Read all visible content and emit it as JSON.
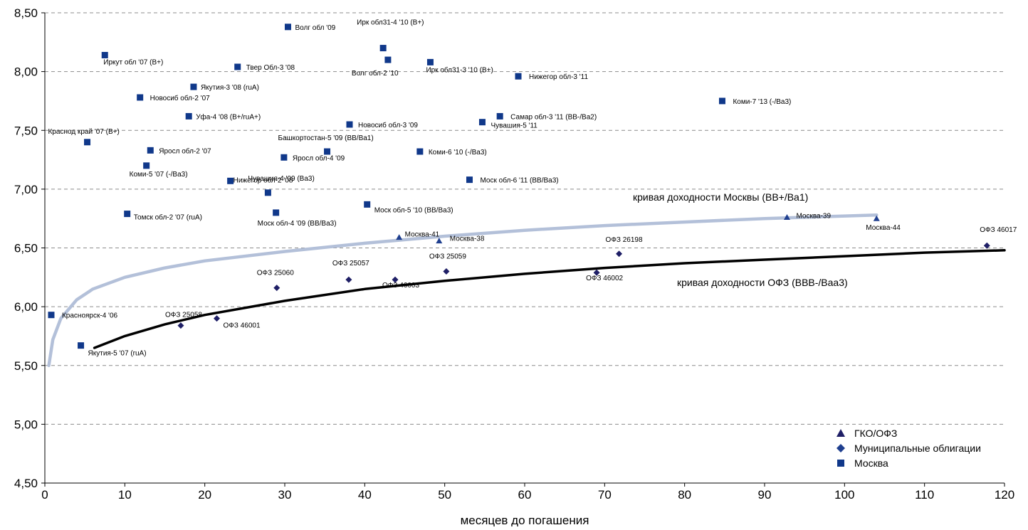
{
  "chart_data": {
    "type": "scatter",
    "xlabel": "месяцев до погашения",
    "ylabel": "",
    "xlim": [
      0,
      120
    ],
    "ylim": [
      4.5,
      8.5
    ],
    "x_ticks": [
      "0",
      "10",
      "20",
      "30",
      "40",
      "50",
      "60",
      "70",
      "80",
      "90",
      "100",
      "110",
      "120"
    ],
    "y_ticks": [
      "4,50",
      "5,00",
      "5,50",
      "6,00",
      "6,50",
      "7,00",
      "7,50",
      "8,00",
      "8,50"
    ],
    "grid": "horizontal dashed",
    "legend_position": "bottom-right",
    "colors": {
      "ofz": "#1f1f66",
      "municipal": "#1f3f8f",
      "moscow": "#10388a",
      "moscow_curve": "#b3c0d9",
      "ofz_curve": "#000000"
    },
    "series": [
      {
        "name": "ГКО/ОФЗ",
        "marker": "triangle",
        "points": [
          {
            "x": 17.0,
            "y": 5.84,
            "label": "ОФЗ 25058"
          },
          {
            "x": 21.5,
            "y": 5.9,
            "label": "ОФЗ 46001"
          },
          {
            "x": 29.0,
            "y": 6.16,
            "label": "ОФЗ 25060"
          },
          {
            "x": 38.0,
            "y": 6.23,
            "label": "ОФЗ 25057"
          },
          {
            "x": 43.8,
            "y": 6.23,
            "label": "ОФЗ 46003"
          },
          {
            "x": 50.2,
            "y": 6.3,
            "label": "ОФЗ 25059"
          },
          {
            "x": 69.0,
            "y": 6.29,
            "label": "ОФЗ 46002"
          },
          {
            "x": 71.8,
            "y": 6.45,
            "label": "ОФЗ 26198"
          },
          {
            "x": 117.8,
            "y": 6.52,
            "label": "ОФЗ 46017"
          }
        ]
      },
      {
        "name": "Муниципальные облигации",
        "marker": "diamond",
        "points": [
          {
            "x": 44.3,
            "y": 6.59,
            "label": "Москва-41"
          },
          {
            "x": 49.3,
            "y": 6.56,
            "label": "Москва-38"
          },
          {
            "x": 92.8,
            "y": 6.76,
            "label": "Москва-39"
          },
          {
            "x": 104.0,
            "y": 6.75,
            "label": "Москва-44"
          }
        ]
      },
      {
        "name": "Москва",
        "marker": "square",
        "points": [
          {
            "x": 0.8,
            "y": 5.93,
            "label": "Красноярск-4 '06"
          },
          {
            "x": 4.5,
            "y": 5.67,
            "label": "Якутия-5 '07 (ruA)"
          },
          {
            "x": 5.3,
            "y": 7.4,
            "label": "Краснод край '07 (B+)"
          },
          {
            "x": 7.5,
            "y": 8.14,
            "label": "Иркут обл '07 (B+)"
          },
          {
            "x": 10.3,
            "y": 6.79,
            "label": "Томск обл-2 '07 (ruA)"
          },
          {
            "x": 11.9,
            "y": 7.78,
            "label": "Новосиб обл-2 '07"
          },
          {
            "x": 12.7,
            "y": 7.2,
            "label": "Коми-5 '07 (-/Ba3)"
          },
          {
            "x": 13.2,
            "y": 7.33,
            "label": "Яросл обл-2 '07"
          },
          {
            "x": 18.0,
            "y": 7.62,
            "label": "Уфа-4 '08 (B+/ruA+)"
          },
          {
            "x": 18.6,
            "y": 7.87,
            "label": "Якутия-3 '08 (ruA)"
          },
          {
            "x": 23.2,
            "y": 7.07,
            "label": "Нижегор обл-2 '08"
          },
          {
            "x": 24.1,
            "y": 8.04,
            "label": "Твер Обл-3 '08"
          },
          {
            "x": 27.9,
            "y": 6.97,
            "label": "Чувашия-4 '09 (Ba3)"
          },
          {
            "x": 28.9,
            "y": 6.8,
            "label": "Моск обл-4 '09 (BB/Ba3)"
          },
          {
            "x": 29.9,
            "y": 7.27,
            "label": "Яросл обл-4 '09"
          },
          {
            "x": 30.4,
            "y": 8.38,
            "label": "Волг обл '09"
          },
          {
            "x": 35.3,
            "y": 7.32,
            "label": "Башкортостан-5 '09 (BB/Ba1)"
          },
          {
            "x": 38.1,
            "y": 7.55,
            "label": "Новосиб обл-3 '09"
          },
          {
            "x": 40.3,
            "y": 6.87,
            "label": "Моск обл-5 '10 (BB/Ba3)"
          },
          {
            "x": 42.3,
            "y": 8.2,
            "label": "Ирк обл31-4 '10 (B+)"
          },
          {
            "x": 42.9,
            "y": 8.1,
            "label": "Волг обл-2 '10"
          },
          {
            "x": 46.9,
            "y": 7.32,
            "label": "Коми-6 '10 (-/Ba3)"
          },
          {
            "x": 48.2,
            "y": 8.08,
            "label": "Ирк обл31-3 '10 (B+)"
          },
          {
            "x": 53.1,
            "y": 7.08,
            "label": "Моск обл-6 '11 (BB/Ba3)"
          },
          {
            "x": 54.7,
            "y": 7.57,
            "label": "Чувашия-5 '11"
          },
          {
            "x": 56.9,
            "y": 7.62,
            "label": "Самар обл-3 '11 (BB-/Ba2)"
          },
          {
            "x": 59.2,
            "y": 7.96,
            "label": "Нижегор обл-3 '11"
          },
          {
            "x": 84.7,
            "y": 7.75,
            "label": "Коми-7 '13 (-/Ba3)"
          }
        ]
      }
    ],
    "curves": [
      {
        "name": "кривая доходности Москвы (BB+/Ba1)",
        "points": [
          {
            "x": 0.5,
            "y": 5.5
          },
          {
            "x": 1,
            "y": 5.72
          },
          {
            "x": 2,
            "y": 5.9
          },
          {
            "x": 4,
            "y": 6.06
          },
          {
            "x": 6,
            "y": 6.15
          },
          {
            "x": 10,
            "y": 6.25
          },
          {
            "x": 15,
            "y": 6.33
          },
          {
            "x": 20,
            "y": 6.39
          },
          {
            "x": 30,
            "y": 6.47
          },
          {
            "x": 40,
            "y": 6.54
          },
          {
            "x": 50,
            "y": 6.6
          },
          {
            "x": 60,
            "y": 6.65
          },
          {
            "x": 70,
            "y": 6.69
          },
          {
            "x": 80,
            "y": 6.72
          },
          {
            "x": 90,
            "y": 6.75
          },
          {
            "x": 104,
            "y": 6.78
          }
        ]
      },
      {
        "name": "кривая доходности ОФЗ (BBB-/Baa3)",
        "points": [
          {
            "x": 6.2,
            "y": 5.65
          },
          {
            "x": 10,
            "y": 5.75
          },
          {
            "x": 15,
            "y": 5.85
          },
          {
            "x": 20,
            "y": 5.93
          },
          {
            "x": 30,
            "y": 6.05
          },
          {
            "x": 40,
            "y": 6.15
          },
          {
            "x": 50,
            "y": 6.22
          },
          {
            "x": 60,
            "y": 6.28
          },
          {
            "x": 70,
            "y": 6.33
          },
          {
            "x": 80,
            "y": 6.37
          },
          {
            "x": 90,
            "y": 6.4
          },
          {
            "x": 100,
            "y": 6.43
          },
          {
            "x": 110,
            "y": 6.46
          },
          {
            "x": 120,
            "y": 6.48
          }
        ]
      }
    ]
  }
}
